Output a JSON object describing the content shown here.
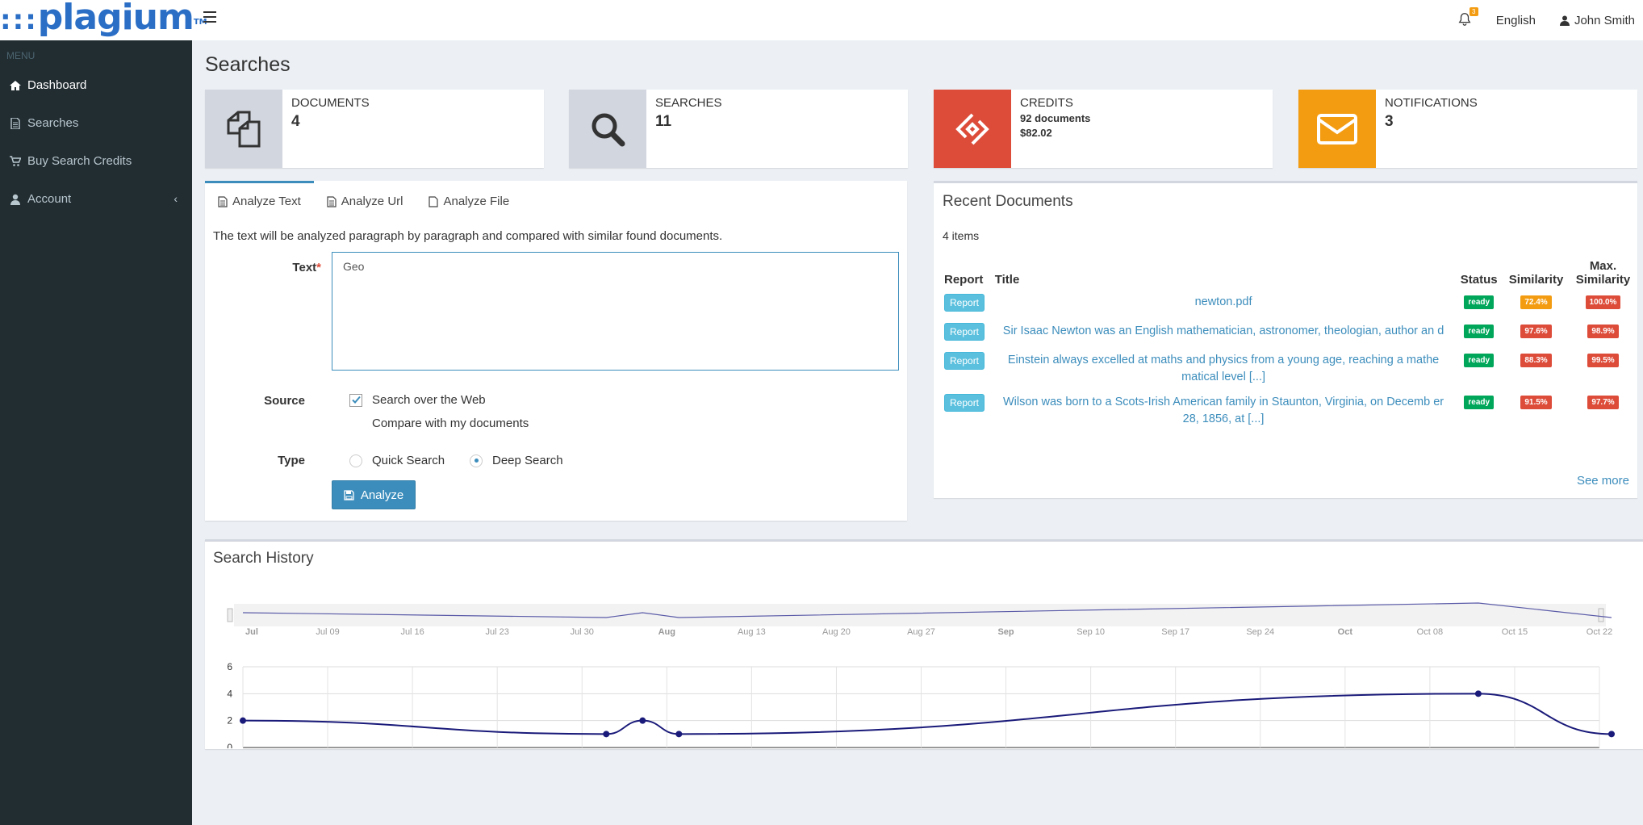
{
  "header": {
    "logo_dots": ":::",
    "logo_text": "plagium",
    "logo_tm": "TM",
    "notif_count": "3",
    "language": "English",
    "user_name": "John Smith"
  },
  "sidebar": {
    "menu_header": "MENU",
    "items": [
      {
        "label": "Dashboard",
        "icon": "home-icon"
      },
      {
        "label": "Searches",
        "icon": "file-icon"
      },
      {
        "label": "Buy Search Credits",
        "icon": "cart-icon"
      },
      {
        "label": "Account",
        "icon": "user-icon"
      }
    ]
  },
  "page_title": "Searches",
  "stats": {
    "documents": {
      "label": "DOCUMENTS",
      "value": "4",
      "color": "#d2d6de"
    },
    "searches": {
      "label": "SEARCHES",
      "value": "11",
      "color": "#d2d6de"
    },
    "credits": {
      "label": "CREDITS",
      "line1": "92 documents",
      "line2": "$82.02",
      "color": "#dd4b39"
    },
    "notifications": {
      "label": "NOTIFICATIONS",
      "value": "3",
      "color": "#f39c12"
    }
  },
  "analyze": {
    "tabs": [
      "Analyze Text",
      "Analyze Url",
      "Analyze File"
    ],
    "description": "The text will be analyzed paragraph by paragraph and compared with similar found documents.",
    "text_label": "Text",
    "text_value": "Geo",
    "source_label": "Source",
    "source_options": [
      {
        "label": "Search over the Web",
        "checked": true
      },
      {
        "label": "Compare with my documents",
        "checked": false
      }
    ],
    "type_label": "Type",
    "type_options": [
      {
        "label": "Quick Search",
        "selected": false
      },
      {
        "label": "Deep Search",
        "selected": true
      }
    ],
    "button": "Analyze"
  },
  "recent": {
    "title": "Recent Documents",
    "count": "4 items",
    "headers": {
      "report": "Report",
      "title": "Title",
      "status": "Status",
      "similarity": "Similarity",
      "max1": "Max.",
      "max2": "Similarity"
    },
    "rows": [
      {
        "report": "Report",
        "title": "newton.pdf",
        "status": "ready",
        "similarity": "72.4%",
        "sim_color": "#f39c12",
        "max": "100.0%"
      },
      {
        "report": "Report",
        "title": "Sir Isaac Newton was an English mathematician, astronomer, theologian, author an d",
        "status": "ready",
        "similarity": "97.6%",
        "sim_color": "#dd4b39",
        "max": "98.9%"
      },
      {
        "report": "Report",
        "title": "Einstein always excelled at maths and physics from a young age, reaching a mathe matical level [...]",
        "status": "ready",
        "similarity": "88.3%",
        "sim_color": "#dd4b39",
        "max": "99.5%"
      },
      {
        "report": "Report",
        "title": "Wilson was born to a Scots-Irish American family in Staunton, Virginia, on Decemb er 28, 1856, at [...]",
        "status": "ready",
        "similarity": "91.5%",
        "sim_color": "#dd4b39",
        "max": "97.7%"
      }
    ],
    "see_more": "See more"
  },
  "history": {
    "title": "Search History"
  },
  "chart_data": {
    "type": "line",
    "title": "Search History",
    "xlabel": "",
    "ylabel": "",
    "ylim": [
      0,
      6
    ],
    "y_ticks": [
      "0",
      "2",
      "4",
      "6"
    ],
    "x_ticks": [
      "Jul",
      "Jul 09",
      "Jul 16",
      "Jul 23",
      "Jul 30",
      "Aug",
      "Aug 13",
      "Aug 20",
      "Aug 27",
      "Sep",
      "Sep 10",
      "Sep 17",
      "Sep 24",
      "Oct",
      "Oct 08",
      "Oct 15",
      "Oct 22"
    ],
    "bold_ticks": [
      "Jul",
      "Aug",
      "Sep",
      "Oct"
    ],
    "x": [
      "Jul 01",
      "Jul 31",
      "Aug 03",
      "Aug 06",
      "Oct 11",
      "Oct 22"
    ],
    "values": [
      2,
      1,
      2,
      1,
      4,
      1
    ],
    "grid": true,
    "navigator": true,
    "line_color": "#1a1a7a"
  }
}
